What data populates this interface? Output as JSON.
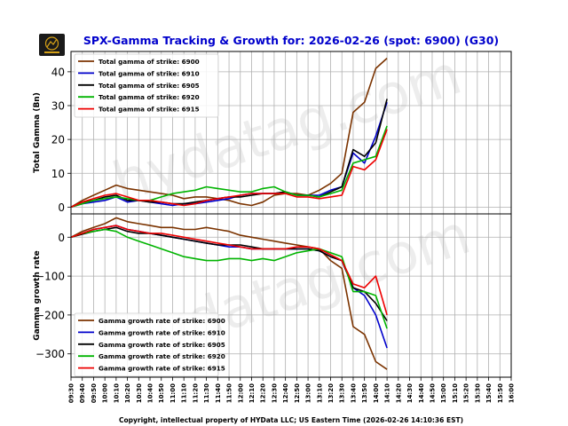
{
  "title": "SPX-Gamma Tracking & Growth for: 2026-02-26 (spot: 6900) (G30)",
  "logo_text": "HYData",
  "footer": "Copyright, intellectual property of HYData LLC; US Eastern Time (2026-02-26 14:10:36 EST)",
  "watermark": "hydatag.com",
  "colors": {
    "title": "#0000cc",
    "6900": "#7b3300",
    "6910": "#0000cc",
    "6905": "#000000",
    "6920": "#00b400",
    "6915": "#ee0000"
  },
  "chart_data": [
    {
      "type": "line",
      "ylabel": "Total Gamma (Bn)",
      "ylim": [
        -2,
        46
      ],
      "yticks": [
        0,
        10,
        20,
        30,
        40
      ],
      "grid": true,
      "legend_position": "top-left",
      "x": [
        "09:30",
        "09:40",
        "09:50",
        "10:00",
        "10:10",
        "10:20",
        "10:30",
        "10:40",
        "10:50",
        "11:00",
        "11:10",
        "11:20",
        "11:30",
        "11:40",
        "11:50",
        "12:00",
        "12:10",
        "12:20",
        "12:30",
        "12:40",
        "12:50",
        "13:00",
        "13:10",
        "13:20",
        "13:30",
        "13:40",
        "13:50",
        "14:00",
        "14:10"
      ],
      "series": [
        {
          "name": "Total gamma of strike: 6900",
          "color": "#7b3300",
          "values": [
            0,
            2,
            3.5,
            5,
            6.5,
            5.5,
            5,
            4.5,
            4,
            3.5,
            2.5,
            3,
            3,
            2.5,
            2,
            1,
            0.5,
            1.5,
            3.5,
            4,
            4,
            3.5,
            5,
            7,
            10,
            28,
            31,
            41,
            44
          ]
        },
        {
          "name": "Total gamma of strike: 6910",
          "color": "#0000cc",
          "values": [
            0,
            1,
            1.5,
            2,
            3,
            1.5,
            2,
            1.5,
            1,
            0.5,
            1,
            1,
            1.5,
            2,
            2.5,
            3.5,
            4,
            4,
            4,
            4.5,
            3.5,
            3.5,
            3.5,
            5,
            6,
            16,
            13,
            21,
            31
          ]
        },
        {
          "name": "Total gamma of strike: 6905",
          "color": "#000000",
          "values": [
            0,
            1.5,
            2,
            3,
            3.5,
            2,
            2,
            1.5,
            1.5,
            1,
            1,
            1.5,
            2,
            2.5,
            3,
            3,
            3.5,
            4,
            4,
            4.5,
            3.5,
            3.5,
            3,
            4.5,
            6,
            17,
            15,
            19,
            32
          ]
        },
        {
          "name": "Total gamma of strike: 6920",
          "color": "#00b400",
          "values": [
            0,
            1,
            2,
            2.5,
            3,
            2.5,
            2,
            2,
            3,
            4,
            4.5,
            5,
            6,
            5.5,
            5,
            4.5,
            4.5,
            5.5,
            6,
            4.5,
            3.5,
            3.5,
            3,
            4,
            5,
            13,
            14,
            15,
            24
          ]
        },
        {
          "name": "Total gamma of strike: 6915",
          "color": "#ee0000",
          "values": [
            0,
            1.5,
            2.5,
            3.5,
            4,
            3,
            2,
            2,
            1.5,
            1,
            0.5,
            1,
            2,
            2.5,
            3,
            3.5,
            4,
            4,
            4,
            4,
            3,
            3,
            2.5,
            3,
            3.5,
            12,
            11,
            14,
            23
          ]
        }
      ]
    },
    {
      "type": "line",
      "ylabel": "Gamma growth rate",
      "ylim": [
        -360,
        60
      ],
      "yticks": [
        0,
        -100,
        -200,
        -300
      ],
      "grid": true,
      "legend_position": "bottom-left",
      "x": [
        "09:30",
        "09:40",
        "09:50",
        "10:00",
        "10:10",
        "10:20",
        "10:30",
        "10:40",
        "10:50",
        "11:00",
        "11:10",
        "11:20",
        "11:30",
        "11:40",
        "11:50",
        "12:00",
        "12:10",
        "12:20",
        "12:30",
        "12:40",
        "12:50",
        "13:00",
        "13:10",
        "13:20",
        "13:30",
        "13:40",
        "13:50",
        "14:00",
        "14:10"
      ],
      "series": [
        {
          "name": "Gamma growth rate of strike: 6900",
          "color": "#7b3300",
          "values": [
            0,
            15,
            25,
            35,
            50,
            40,
            35,
            30,
            25,
            25,
            20,
            20,
            25,
            20,
            15,
            5,
            0,
            -5,
            -10,
            -15,
            -20,
            -25,
            -30,
            -60,
            -80,
            -230,
            -250,
            -320,
            -340
          ]
        },
        {
          "name": "Gamma growth rate of strike: 6910",
          "color": "#0000cc",
          "values": [
            0,
            10,
            20,
            25,
            30,
            20,
            15,
            10,
            5,
            0,
            -5,
            -10,
            -15,
            -20,
            -25,
            -25,
            -30,
            -30,
            -30,
            -30,
            -30,
            -30,
            -35,
            -50,
            -60,
            -130,
            -150,
            -200,
            -285
          ]
        },
        {
          "name": "Gamma growth rate of strike: 6905",
          "color": "#000000",
          "values": [
            0,
            8,
            15,
            20,
            25,
            15,
            10,
            10,
            5,
            0,
            -5,
            -10,
            -15,
            -20,
            -20,
            -20,
            -25,
            -30,
            -30,
            -30,
            -30,
            -30,
            -35,
            -50,
            -60,
            -130,
            -140,
            -170,
            -215
          ]
        },
        {
          "name": "Gamma growth rate of strike: 6920",
          "color": "#00b400",
          "values": [
            0,
            10,
            15,
            20,
            15,
            0,
            -10,
            -20,
            -30,
            -40,
            -50,
            -55,
            -60,
            -60,
            -55,
            -55,
            -60,
            -55,
            -60,
            -50,
            -40,
            -35,
            -30,
            -40,
            -50,
            -140,
            -140,
            -150,
            -235
          ]
        },
        {
          "name": "Gamma growth rate of strike: 6915",
          "color": "#ee0000",
          "values": [
            0,
            10,
            20,
            25,
            30,
            20,
            15,
            10,
            10,
            5,
            0,
            -5,
            -10,
            -15,
            -20,
            -25,
            -30,
            -30,
            -30,
            -30,
            -25,
            -25,
            -30,
            -45,
            -60,
            -120,
            -130,
            -100,
            -200
          ]
        }
      ]
    }
  ],
  "x_ticks": [
    "09:30",
    "09:40",
    "09:50",
    "10:00",
    "10:10",
    "10:20",
    "10:30",
    "10:40",
    "10:50",
    "11:00",
    "11:10",
    "11:20",
    "11:30",
    "11:40",
    "11:50",
    "12:00",
    "12:10",
    "12:20",
    "12:30",
    "12:40",
    "12:50",
    "13:00",
    "13:10",
    "13:20",
    "13:30",
    "13:40",
    "13:50",
    "14:00",
    "14:10",
    "14:20",
    "14:30",
    "14:40",
    "14:50",
    "15:00",
    "15:10",
    "15:20",
    "15:30",
    "15:40",
    "15:50",
    "16:00"
  ]
}
